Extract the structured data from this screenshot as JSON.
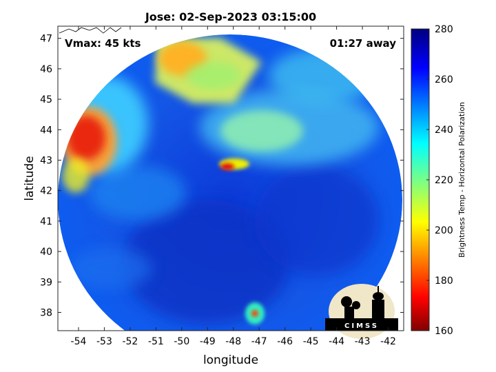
{
  "chart_data": {
    "type": "heatmap",
    "title": "Jose: 02-Sep-2023 03:15:00",
    "xlabel": "longitude",
    "ylabel": "latitude",
    "xlim": [
      -54.8,
      -41.4
    ],
    "ylim": [
      37.4,
      47.4
    ],
    "x_ticks": [
      -54,
      -53,
      -52,
      -51,
      -50,
      -49,
      -48,
      -47,
      -46,
      -45,
      -44,
      -43,
      -42
    ],
    "y_ticks": [
      38,
      39,
      40,
      41,
      42,
      43,
      44,
      45,
      46,
      47
    ],
    "grid": false,
    "colorbar": {
      "label": "Brightness Temp - Horizontal Polarization",
      "range": [
        160,
        280
      ],
      "ticks": [
        160,
        180,
        200,
        220,
        240,
        260,
        280
      ],
      "colormap": "jet",
      "position": "right"
    },
    "annotations": {
      "vmax": "Vmax: 45 kts",
      "time_offset": "01:27 away"
    },
    "center": {
      "lon": -48.1,
      "lat": 42.6
    },
    "features": [
      {
        "name": "cold region northwest",
        "lon": -53.5,
        "lat": 43.8,
        "value": 178
      },
      {
        "name": "band north",
        "lon": -49.8,
        "lat": 46.3,
        "value": 205
      },
      {
        "name": "convective core",
        "lon": -47.9,
        "lat": 43.0,
        "value": 178
      },
      {
        "name": "convection south",
        "lon": -47.0,
        "lat": 38.0,
        "value": 185
      },
      {
        "name": "cloud shield north",
        "lon": -46.5,
        "lat": 44.5,
        "value": 233
      },
      {
        "name": "background ocean",
        "lon": -47.5,
        "lat": 40.5,
        "value": 262
      }
    ]
  },
  "logo": {
    "text": "CIMSS"
  },
  "colors": {
    "swath_edge": "#0a40d0",
    "background": "#ffffff",
    "coast": "#000000"
  }
}
